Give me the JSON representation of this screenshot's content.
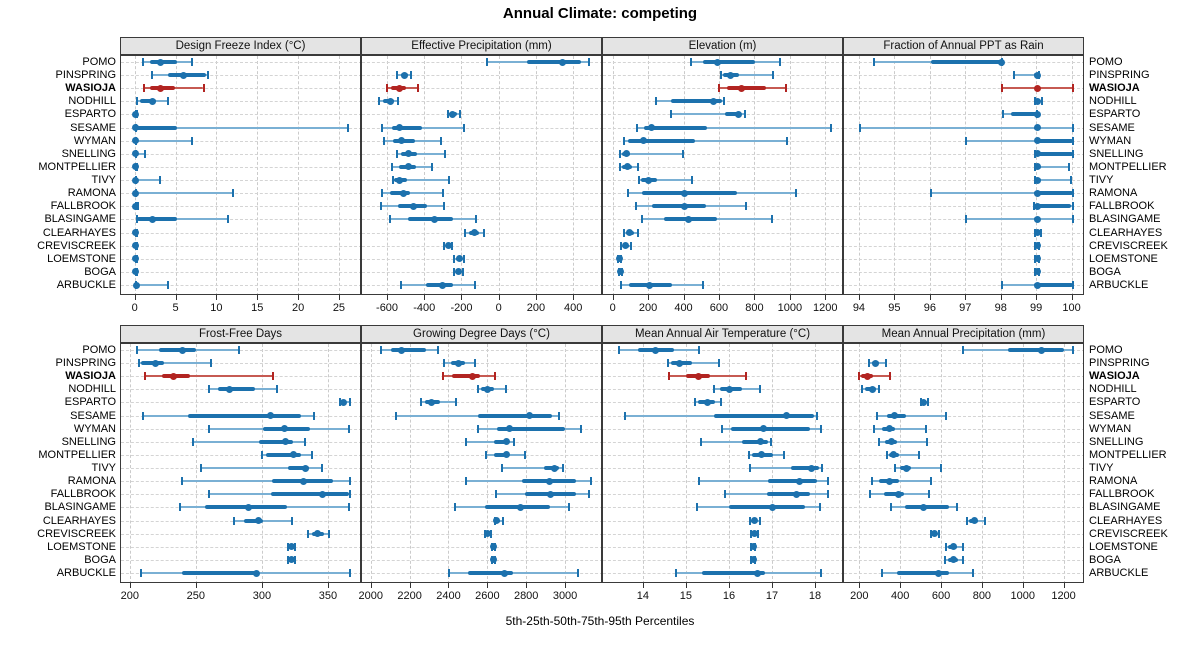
{
  "title": "Annual Climate: competing",
  "caption": "5th-25th-50th-75th-95th Percentiles",
  "highlight_site": "WASIOJA",
  "sites": [
    "POMO",
    "PINSPRING",
    "WASIOJA",
    "NODHILL",
    "ESPARTO",
    "SESAME",
    "WYMAN",
    "SNELLING",
    "MONTPELLIER",
    "TIVY",
    "RAMONA",
    "FALLBROOK",
    "BLASINGAME",
    "CLEARHAYES",
    "CREVISCREEK",
    "LOEMSTONE",
    "BOGA",
    "ARBUCKLE"
  ],
  "colors": {
    "blue_main": "#1c71ad",
    "blue_light": "#7ab0d4",
    "red_main": "#b22421",
    "red_light": "#c65a52",
    "strip_bg": "#e4e4e4",
    "grid": "#cccccc",
    "border": "#3a3a3a"
  },
  "chart_data": {
    "type": "dotplot-interval",
    "percentiles": [
      "5th",
      "25th",
      "50th",
      "75th",
      "95th"
    ],
    "grid": "dashed",
    "layout": "2x4 trellis, site labels on both sides, WASIOJA highlighted red",
    "panels": [
      {
        "title": "Design Freeze Index (°C)",
        "xlim": [
          -1.8,
          27.7
        ],
        "ticks": [
          0,
          5,
          10,
          15,
          20,
          25
        ],
        "values": [
          [
            0.9,
            1.8,
            3.0,
            5.0,
            6.9
          ],
          [
            2.0,
            4.0,
            5.9,
            8.6,
            8.9
          ],
          [
            1.0,
            1.8,
            3.0,
            4.8,
            8.3
          ],
          [
            0.1,
            0.5,
            2.0,
            2.5,
            4.0
          ],
          [
            0,
            0,
            0,
            0,
            0.1
          ],
          [
            0,
            0,
            0,
            5.0,
            26.0
          ],
          [
            0,
            0,
            0,
            0.1,
            6.9
          ],
          [
            0,
            0,
            0,
            0.1,
            1.1
          ],
          [
            0,
            0,
            0,
            0,
            0.1
          ],
          [
            0,
            0,
            0,
            0.1,
            3.0
          ],
          [
            0,
            0,
            0,
            0.1,
            11.9
          ],
          [
            0,
            0,
            0,
            0,
            0.3
          ],
          [
            0.1,
            0.2,
            2.0,
            5.0,
            11.3
          ],
          [
            0,
            0,
            0,
            0,
            0.2
          ],
          [
            0,
            0,
            0,
            0,
            0.1
          ],
          [
            0,
            0,
            0,
            0,
            0.1
          ],
          [
            0,
            0,
            0,
            0,
            0.1
          ],
          [
            0,
            0,
            0.1,
            0.3,
            4.0
          ]
        ]
      },
      {
        "title": "Effective Precipitation (mm)",
        "xlim": [
          -740,
          555
        ],
        "ticks": [
          -600,
          -400,
          -200,
          0,
          200,
          400
        ],
        "values": [
          [
            -71,
            146,
            339,
            437,
            482
          ],
          [
            -554,
            -532,
            -513,
            -491,
            -477
          ],
          [
            -607,
            -584,
            -541,
            -505,
            -441
          ],
          [
            -648,
            -625,
            -589,
            -566,
            -548
          ],
          [
            -280,
            -273,
            -255,
            -232,
            -214
          ],
          [
            -630,
            -580,
            -541,
            -420,
            -191
          ],
          [
            -620,
            -571,
            -530,
            -455,
            -316
          ],
          [
            -554,
            -530,
            -491,
            -446,
            -295
          ],
          [
            -577,
            -541,
            -491,
            -452,
            -366
          ],
          [
            -571,
            -566,
            -541,
            -500,
            -273
          ],
          [
            -630,
            -589,
            -518,
            -482,
            -304
          ],
          [
            -638,
            -548,
            -464,
            -393,
            -298
          ],
          [
            -589,
            -491,
            -352,
            -250,
            -125
          ],
          [
            -188,
            -166,
            -138,
            -113,
            -84
          ],
          [
            -298,
            -289,
            -277,
            -266,
            -255
          ],
          [
            -245,
            -236,
            -214,
            -205,
            -191
          ],
          [
            -245,
            -232,
            -220,
            -207,
            -196
          ],
          [
            -530,
            -398,
            -309,
            -250,
            -134
          ]
        ]
      },
      {
        "title": "Elevation (m)",
        "xlim": [
          -60,
          1300
        ],
        "ticks": [
          0,
          200,
          400,
          600,
          800,
          1000,
          1200
        ],
        "values": [
          [
            434,
            506,
            585,
            798,
            940
          ],
          [
            604,
            615,
            660,
            709,
            902
          ],
          [
            596,
            642,
            723,
            860,
            974
          ],
          [
            238,
            326,
            562,
            609,
            623
          ],
          [
            325,
            630,
            705,
            715,
            740
          ],
          [
            132,
            170,
            212,
            525,
            1226
          ],
          [
            57,
            81,
            170,
            458,
            981
          ],
          [
            38,
            49,
            75,
            91,
            389
          ],
          [
            38,
            49,
            81,
            106,
            138
          ],
          [
            143,
            157,
            194,
            242,
            440
          ],
          [
            81,
            162,
            402,
            698,
            1030
          ],
          [
            125,
            219,
            402,
            521,
            747
          ],
          [
            162,
            283,
            421,
            585,
            892
          ],
          [
            57,
            68,
            87,
            113,
            138
          ],
          [
            43,
            51,
            68,
            85,
            100
          ],
          [
            25,
            28,
            32,
            36,
            40
          ],
          [
            30,
            34,
            38,
            44,
            50
          ],
          [
            43,
            87,
            204,
            332,
            502
          ]
        ]
      },
      {
        "title": "Fraction of Annual PPT as Rain",
        "xlim": [
          93.55,
          100.35
        ],
        "ticks": [
          94,
          95,
          96,
          97,
          98,
          99,
          100
        ],
        "values": [
          [
            94.4,
            96.0,
            98.0,
            98.0,
            98.0
          ],
          [
            98.35,
            98.9,
            99.0,
            99.0,
            99.05
          ],
          [
            98.0,
            98.95,
            99.0,
            99.05,
            100.0
          ],
          [
            98.95,
            99.0,
            99.0,
            99.05,
            99.15
          ],
          [
            98.05,
            98.25,
            99.0,
            99.0,
            99.0
          ],
          [
            94.0,
            98.9,
            99.0,
            99.05,
            100.0
          ],
          [
            97.0,
            98.95,
            99.0,
            100.0,
            100.0
          ],
          [
            98.95,
            99.0,
            99.0,
            100.0,
            100.0
          ],
          [
            98.95,
            99.0,
            99.0,
            99.1,
            99.9
          ],
          [
            98.95,
            99.0,
            99.0,
            99.1,
            99.95
          ],
          [
            96.0,
            98.9,
            99.0,
            100.0,
            100.0
          ],
          [
            98.9,
            99.0,
            99.0,
            99.95,
            100.0
          ],
          [
            97.0,
            98.9,
            99.0,
            99.05,
            100.0
          ],
          [
            98.95,
            99.0,
            99.0,
            99.05,
            99.1
          ],
          [
            98.95,
            99.0,
            99.0,
            99.0,
            99.05
          ],
          [
            98.95,
            99.0,
            99.0,
            99.0,
            99.05
          ],
          [
            98.95,
            99.0,
            99.0,
            99.0,
            99.05
          ],
          [
            98.0,
            98.9,
            99.0,
            100.0,
            100.0
          ]
        ]
      },
      {
        "title": "Frost-Free Days",
        "xlim": [
          192.6,
          375
        ],
        "ticks": [
          200,
          250,
          300,
          350
        ],
        "values": [
          [
            205,
            221,
            239,
            249,
            282
          ],
          [
            206,
            208,
            219,
            225,
            261
          ],
          [
            211,
            224,
            232,
            245,
            308
          ],
          [
            259,
            266,
            275,
            294,
            311
          ],
          [
            358,
            361,
            361,
            362,
            366
          ],
          [
            209,
            243,
            306,
            329,
            339
          ],
          [
            259,
            300,
            316,
            336,
            365
          ],
          [
            247,
            297,
            317,
            323,
            332
          ],
          [
            299,
            302,
            323,
            329,
            337
          ],
          [
            253,
            319,
            332,
            335,
            345
          ],
          [
            239,
            307,
            331,
            353,
            366
          ],
          [
            259,
            306,
            345,
            365,
            366
          ],
          [
            237,
            256,
            289,
            318,
            365
          ],
          [
            278,
            286,
            297,
            300,
            322
          ],
          [
            334,
            337,
            341,
            346,
            350
          ],
          [
            319,
            321,
            322,
            323,
            324
          ],
          [
            319,
            321,
            322,
            323,
            324
          ],
          [
            208,
            239,
            295,
            296,
            366
          ]
        ]
      },
      {
        "title": "Growing Degree Days (°C)",
        "xlim": [
          1950,
          3190
        ],
        "ticks": [
          2000,
          2200,
          2400,
          2600,
          2800,
          3000
        ],
        "values": [
          [
            2046,
            2097,
            2154,
            2277,
            2342
          ],
          [
            2371,
            2410,
            2448,
            2482,
            2530
          ],
          [
            2366,
            2414,
            2520,
            2559,
            2636
          ],
          [
            2547,
            2564,
            2598,
            2627,
            2691
          ],
          [
            2256,
            2274,
            2308,
            2349,
            2434
          ],
          [
            2126,
            2547,
            2810,
            2926,
            2964
          ],
          [
            2547,
            2644,
            2708,
            2995,
            3077
          ],
          [
            2486,
            2627,
            2691,
            2708,
            2730
          ],
          [
            2588,
            2627,
            2691,
            2704,
            2790
          ],
          [
            2670,
            2884,
            2940,
            2964,
            2986
          ],
          [
            2486,
            2773,
            2913,
            3050,
            3128
          ],
          [
            2639,
            2790,
            2918,
            3050,
            3118
          ],
          [
            2427,
            2581,
            2764,
            2918,
            3015
          ],
          [
            2632,
            2638,
            2644,
            2660,
            2674
          ],
          [
            2585,
            2592,
            2598,
            2605,
            2612
          ],
          [
            2620,
            2624,
            2627,
            2630,
            2634
          ],
          [
            2620,
            2624,
            2627,
            2630,
            2634
          ],
          [
            2400,
            2496,
            2684,
            2725,
            3060
          ]
        ]
      },
      {
        "title": "Mean Annual Air Temperature (°C)",
        "xlim": [
          13.05,
          18.65
        ],
        "ticks": [
          14,
          15,
          16,
          17,
          18
        ],
        "values": [
          [
            13.43,
            13.87,
            14.28,
            14.69,
            15.28
          ],
          [
            14.56,
            14.64,
            14.82,
            15.12,
            15.74
          ],
          [
            14.58,
            14.97,
            15.28,
            15.54,
            16.38
          ],
          [
            15.64,
            15.77,
            15.98,
            16.28,
            16.69
          ],
          [
            15.18,
            15.25,
            15.48,
            15.66,
            15.79
          ],
          [
            13.56,
            15.64,
            17.31,
            17.95,
            18.02
          ],
          [
            15.82,
            16.02,
            16.79,
            17.87,
            18.12
          ],
          [
            15.33,
            16.28,
            16.72,
            16.89,
            16.95
          ],
          [
            16.45,
            16.51,
            16.74,
            17.0,
            17.25
          ],
          [
            16.46,
            17.41,
            17.89,
            18.08,
            18.15
          ],
          [
            15.28,
            16.89,
            17.62,
            18.02,
            18.28
          ],
          [
            15.89,
            16.87,
            17.54,
            17.85,
            18.28
          ],
          [
            15.23,
            15.97,
            17.0,
            17.74,
            18.1
          ],
          [
            16.46,
            16.5,
            16.56,
            16.62,
            16.69
          ],
          [
            16.5,
            16.54,
            16.58,
            16.62,
            16.66
          ],
          [
            16.5,
            16.52,
            16.54,
            16.56,
            16.58
          ],
          [
            16.5,
            16.52,
            16.54,
            16.56,
            16.58
          ],
          [
            14.74,
            15.35,
            16.64,
            16.82,
            18.12
          ]
        ]
      },
      {
        "title": "Mean Annual Precipitation (mm)",
        "xlim": [
          120,
          1300
        ],
        "ticks": [
          200,
          400,
          600,
          800,
          1000,
          1200
        ],
        "values": [
          [
            703,
            921,
            1089,
            1195,
            1240
          ],
          [
            244,
            255,
            272,
            290,
            326
          ],
          [
            195,
            203,
            233,
            261,
            343
          ],
          [
            207,
            223,
            261,
            277,
            289
          ],
          [
            495,
            505,
            511,
            520,
            531
          ],
          [
            282,
            331,
            367,
            425,
            621
          ],
          [
            266,
            305,
            343,
            370,
            523
          ],
          [
            293,
            321,
            354,
            380,
            528
          ],
          [
            331,
            338,
            364,
            387,
            485
          ],
          [
            370,
            392,
            425,
            446,
            593
          ],
          [
            256,
            293,
            343,
            387,
            544
          ],
          [
            249,
            315,
            387,
            413,
            534
          ],
          [
            348,
            420,
            507,
            633,
            675
          ],
          [
            720,
            731,
            757,
            777,
            810
          ],
          [
            545,
            552,
            564,
            574,
            584
          ],
          [
            621,
            630,
            654,
            675,
            703
          ],
          [
            616,
            628,
            654,
            678,
            703
          ],
          [
            305,
            380,
            584,
            633,
            752
          ]
        ]
      }
    ]
  }
}
